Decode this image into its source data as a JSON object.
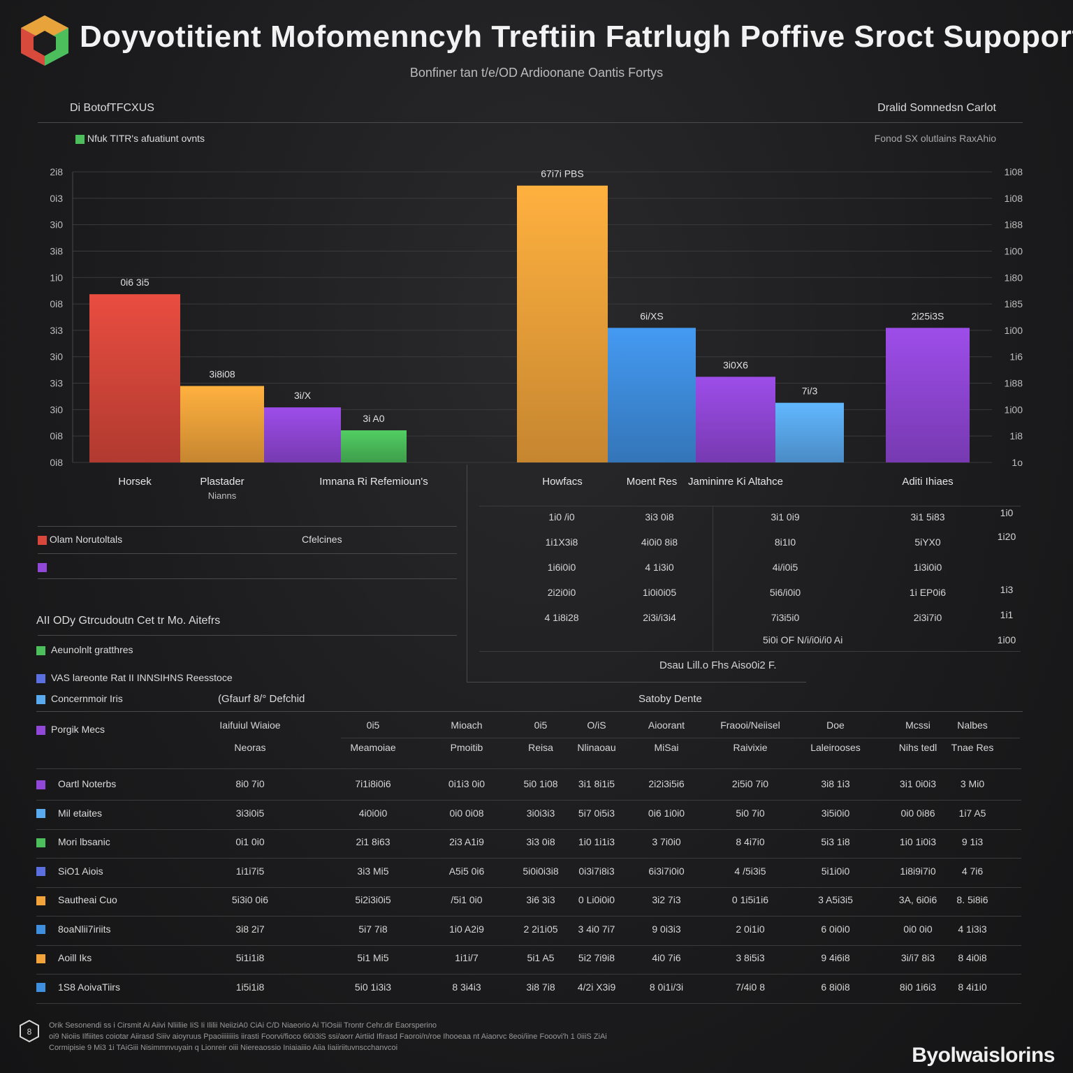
{
  "header": {
    "title": "Doyvotitient Mofomenncyh Treftiin Fatrlugh Poffive Sroct Supoport",
    "subtitle": "Bonfiner tan t/e/OD Ardioonane Oantis Fortys",
    "left_label": "Di BotofTFCXUS",
    "right_label": "Dralid Somnedsn Carlot",
    "legend_label": "Nfuk TITR's afuatiunt ovnts",
    "right_legend_label": "Fonod SX olutlains RaxAhio"
  },
  "colors": {
    "red": "#d8473b",
    "orange": "#f2a43a",
    "purple": "#9147d8",
    "green": "#4cbf5c",
    "blue": "#3f8fe0",
    "lightblue": "#5aaaf0"
  },
  "chart_data": {
    "type": "bar",
    "left_axis_ticks": [
      "2i8",
      "0i3",
      "3i0",
      "3i8",
      "1i0",
      "0i8",
      "3i3",
      "3i0",
      "3i3",
      "3i0",
      "0i8",
      "0i8"
    ],
    "right_axis_ticks": [
      "1i08",
      "1i08",
      "1i88",
      "1i00",
      "1i80",
      "1i85",
      "1i00",
      "1i6",
      "1i88",
      "1i00",
      "1i8",
      "1o"
    ],
    "groups": [
      {
        "bars": [
          {
            "label": "Horsek",
            "value": 220,
            "value_label": "0i6 3i5",
            "color": "#d8473b"
          },
          {
            "label": "Plastader Nianns",
            "value": 100,
            "value_label": "3i8i08",
            "color": "#f2a43a"
          },
          {
            "label": "",
            "value": 72,
            "value_label": "3i/X",
            "color": "#9147d8"
          },
          {
            "label": "Imnana Ri Refemioun's",
            "value": 42,
            "value_label": "3i A0",
            "color": "#4cbf5c"
          }
        ]
      },
      {
        "bars": [
          {
            "label": "Howfacs",
            "value": 362,
            "value_label": "67i7i PBS",
            "color": "#f2a43a"
          },
          {
            "label": "Moent Res",
            "value": 176,
            "value_label": "6i/XS",
            "color": "#3f8fe0"
          },
          {
            "label": "Jamininre Ki Altahce",
            "value": 112,
            "value_label": "3i0X6",
            "color": "#9147d8"
          },
          {
            "label": "",
            "value": 78,
            "value_label": "7i/3",
            "color": "#5aaaf0"
          }
        ]
      },
      {
        "bars": [
          {
            "label": "Aditi Ihiaes",
            "value": 176,
            "value_label": "2i25i3S",
            "color": "#9147d8"
          }
        ]
      }
    ],
    "ylim": [
      0,
      380
    ]
  },
  "left_legend": {
    "items": [
      {
        "label": "Olam Norutoltals",
        "color": "#d8473b"
      },
      {
        "label": "",
        "color": "#9147d8"
      }
    ],
    "column_label": "Cfelcines",
    "section_title": "AII ODy Gtrcudoutn Cet tr Mo. Aitefrs",
    "section_items": [
      {
        "label": "Aeunolnlt gratthres",
        "color": "#4cbf5c"
      },
      {
        "label": "VAS lareonte Rat II INNSIHNS Reesstoce",
        "color": "#5a6fe0"
      },
      {
        "label": "Concernmoir Iris",
        "color": "#5aaaf0"
      },
      {
        "label": "Porgik Mecs",
        "color": "#9147d8"
      }
    ]
  },
  "mini_table": {
    "rows": [
      [
        "1i0 /i0",
        "3i3 0i8",
        "3i1 0i9",
        "3i1 5i83"
      ],
      [
        "1i1X3i8",
        "4i0i0 8i8",
        "8i1I0",
        "5iYX0"
      ],
      [
        "1i6i0i0",
        "4 1i3i0",
        "4i/i0i5",
        "1i3i0i0"
      ],
      [
        "2i2i0i0",
        "1i0i0i05",
        "5i6/i0i0",
        "1i EP0i6"
      ],
      [
        "4 1i8i28",
        "2i3i/i3i4",
        "7i3i5i0",
        "2i3i7i0"
      ]
    ],
    "right_ticks": [
      "1i0",
      "1i20",
      "1i3",
      "1i1",
      "1i00"
    ],
    "note": "5i0i OF N/i/i0i/i0 Ai",
    "caption": "Dsau Lill.o Fhs Aiso0i2 F."
  },
  "big_table": {
    "group_left": "(Gfaurf 8/° Defchid",
    "group_right": "Satoby Dente",
    "header1": [
      "Iaifuiul Wiaioe",
      "0i5",
      "Mioach",
      "0i5",
      "O/iS",
      "Aioorant",
      "Fraooi/Neiisel",
      "Doe",
      "Mcssi",
      "Nalbes"
    ],
    "header2": [
      "Neoras",
      "Meamoiae",
      "Pmoitib",
      "Reisa",
      "Nlinaoau",
      "MiSai",
      "Raivixie",
      "Laleirooses",
      "Nihs tedl",
      "Tnae Res"
    ],
    "rows": [
      {
        "label": "Oartl Noterbs",
        "color": "#9147d8",
        "cells": [
          "8i0 7i0",
          "7i1i8i0i6",
          "0i1i3 0i0",
          "5i0 1i08",
          "3i1 8i1i5",
          "2i2i3i5i6",
          "2i5i0 7i0",
          "3i8 1i3",
          "3i1 0i0i3",
          "3 Mi0"
        ]
      },
      {
        "label": "Mil etaites",
        "color": "#5aaaf0",
        "cells": [
          "3i3i0i5",
          "4i0i0i0",
          "0i0 0i08",
          "3i0i3i3",
          "5i7 0i5i3",
          "0i6 1i0i0",
          "5i0 7i0",
          "3i5i0i0",
          "0i0 0i86",
          "1i7 A5"
        ]
      },
      {
        "label": "Mori lbsanic",
        "color": "#4cbf5c",
        "cells": [
          "0i1 0i0",
          "2i1 8i63",
          "2i3 A1i9",
          "3i3 0i8",
          "1i0 1i1i3",
          "3 7i0i0",
          "8 4i7i0",
          "5i3 1i8",
          "1i0 1i0i3",
          "9 1i3"
        ]
      },
      {
        "label": "SiO1 Aiois",
        "color": "#5a6fe0",
        "cells": [
          "1i1i7i5",
          "3i3 Mi5",
          "A5i5 0i6",
          "5i0i0i3i8",
          "0i3i7i8i3",
          "6i3i7i0i0",
          "4 /5i3i5",
          "5i1i0i0",
          "1i8i9i7i0",
          "4 7i6"
        ]
      },
      {
        "label": "Sautheai Cuo",
        "color": "#f2a43a",
        "cells": [
          "5i3i0 0i6",
          "5i2i3i0i5",
          "/5i1 0i0",
          "3i6 3i3",
          "0 Li0i0i0",
          "3i2 7i3",
          "0 1i5i1i6",
          "3 A5i3i5",
          "3A, 6i0i6",
          "8. 5i8i6"
        ]
      },
      {
        "label": "8oaNlii7iriits",
        "color": "#3f8fe0",
        "cells": [
          "3i8 2i7",
          "5i7 7i8",
          "1i0 A2i9",
          "2 2i1i05",
          "3 4i0 7i7",
          "9 0i3i3",
          "2 0i1i0",
          "6 0i0i0",
          "0i0 0i0",
          "4 1i3i3"
        ]
      },
      {
        "label": "Aoill Iks",
        "color": "#f2a43a",
        "cells": [
          "5i1i1i8",
          "5i1 Mi5",
          "1i1i/7",
          "5i1 A5",
          "5i2 7i9i8",
          "4i0 7i6",
          "3 8i5i3",
          "9 4i6i8",
          "3i/i7 8i3",
          "8 4i0i8"
        ]
      },
      {
        "label": "1S8 AoivaTiirs",
        "color": "#3f8fe0",
        "cells": [
          "1i5i1i8",
          "5i0 1i3i3",
          "8 3i4i3",
          "3i8 7i8",
          "4/2i X3i9",
          "8 0i1i/3i",
          "7/4i0 8",
          "6 8i0i8",
          "8i0 1i6i3",
          "8 4i1i0"
        ]
      }
    ]
  },
  "footer": {
    "line1": "Orik Sesonendi ss i Cirsmit Ai Aiivi Nliiliie IiS Ii Ililii NeiiziA0 CiAi C/D Niaeorio Ai TiOsiii  Trontr Cehr.dir Eaorsperino",
    "line2": "oi9 Nioiis Ilfiiites coiotar Aiirasd Siiiv aioyruus Ppaoiiiiiiiis iirasti Foorvi/fioco 6i0i3iS ssi/aorr Airtiid Ifirasd Faoroi/n/roe  Ihooeaa nt  Aiaorvc 8eoi/iine Fooovi'h 1 0iiiS ZiAi",
    "line3": "Cormipisie 9 Mi3 1i TAiGiii Nisimmnvuyain q Lionreir oiii Niereaossio Iniaiaiiio Aiia Iiaiiriituvnscchanvcoi",
    "brand": "Byolwaislorins"
  }
}
